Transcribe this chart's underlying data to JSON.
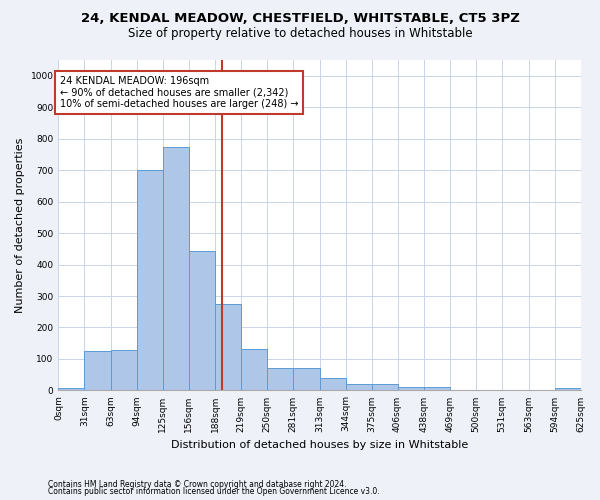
{
  "title": "24, KENDAL MEADOW, CHESTFIELD, WHITSTABLE, CT5 3PZ",
  "subtitle": "Size of property relative to detached houses in Whitstable",
  "xlabel": "Distribution of detached houses by size in Whitstable",
  "ylabel": "Number of detached properties",
  "bin_labels": [
    "0sqm",
    "31sqm",
    "63sqm",
    "94sqm",
    "125sqm",
    "156sqm",
    "188sqm",
    "219sqm",
    "250sqm",
    "281sqm",
    "313sqm",
    "344sqm",
    "375sqm",
    "406sqm",
    "438sqm",
    "469sqm",
    "500sqm",
    "531sqm",
    "563sqm",
    "594sqm",
    "625sqm"
  ],
  "bin_edges": [
    0,
    31,
    63,
    94,
    125,
    156,
    188,
    219,
    250,
    281,
    313,
    344,
    375,
    406,
    438,
    469,
    500,
    531,
    563,
    594,
    625
  ],
  "bar_heights": [
    7,
    125,
    127,
    700,
    775,
    443,
    275,
    133,
    70,
    70,
    40,
    22,
    22,
    12,
    12,
    0,
    0,
    0,
    0,
    8
  ],
  "bar_color": "#aec6e8",
  "bar_edge_color": "#5b9bd5",
  "grid_color": "#c8d4e8",
  "vline_x": 196,
  "vline_color": "#c0392b",
  "annotation_text": "24 KENDAL MEADOW: 196sqm\n← 90% of detached houses are smaller (2,342)\n10% of semi-detached houses are larger (248) →",
  "annotation_box_color": "#c0392b",
  "ylim": [
    0,
    1050
  ],
  "yticks": [
    0,
    100,
    200,
    300,
    400,
    500,
    600,
    700,
    800,
    900,
    1000
  ],
  "footnote1": "Contains HM Land Registry data © Crown copyright and database right 2024.",
  "footnote2": "Contains public sector information licensed under the Open Government Licence v3.0.",
  "bg_color": "#eef2f8",
  "plot_bg_color": "#ffffff",
  "title_fontsize": 9.5,
  "subtitle_fontsize": 8.5,
  "tick_fontsize": 6.5,
  "ylabel_fontsize": 8,
  "xlabel_fontsize": 8,
  "annot_fontsize": 7
}
